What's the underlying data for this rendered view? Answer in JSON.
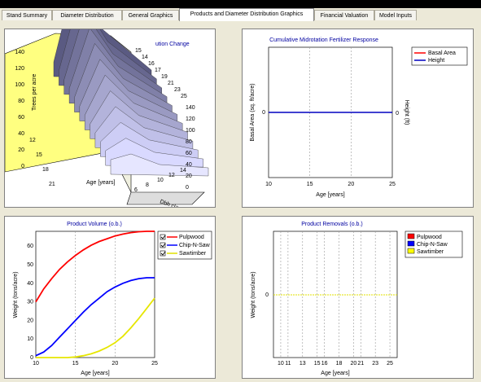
{
  "tabs": [
    {
      "label": "Stand Summary"
    },
    {
      "label": "Diameter Distribution"
    },
    {
      "label": "General Graphics"
    },
    {
      "label": "Products and Diameter Distribution Graphics"
    },
    {
      "label": "Financial Valuation"
    },
    {
      "label": "Model Inputs"
    }
  ],
  "colors": {
    "pulpwood": "#ff0000",
    "chipnsaw": "#0000ff",
    "sawtimber": "#ffff00",
    "height": "#0000c0",
    "background": "#ece9d8"
  },
  "chart_3d": {
    "title": "ution Change",
    "zlabel": "Trees per acre",
    "xlabel": "Age [years]",
    "ylabel": "Dbh class (in)",
    "z_ticks": [
      "140",
      "120",
      "100",
      "80",
      "60",
      "40",
      "20",
      "0"
    ],
    "back_ticks": [
      "15",
      "14",
      "16",
      "17",
      "19",
      "21",
      "23",
      "25"
    ],
    "right_ticks": [
      "140",
      "120",
      "100",
      "80",
      "60",
      "40",
      "20",
      "0"
    ],
    "age_ticks": [
      "12",
      "15",
      "18",
      "21"
    ],
    "dbh_ticks": [
      "14",
      "12",
      "10",
      "8",
      "6"
    ]
  },
  "chart_data": [
    {
      "type": "line",
      "title": "Cumulative Midrotation Fertilizer Response",
      "xlabel": "Age [years]",
      "ylabel": "Basal Area (sq. ft/acre)",
      "y2label": "Height (ft)",
      "x_ticks": [
        10,
        15,
        20,
        25
      ],
      "xlim": [
        10,
        25
      ],
      "series": [
        {
          "name": "Basal Area",
          "color": "#ff0000",
          "x": [
            10,
            25
          ],
          "y": [
            0,
            0
          ]
        },
        {
          "name": "Height",
          "color": "#0000c0",
          "x": [
            10,
            25
          ],
          "y": [
            0,
            0
          ]
        }
      ],
      "y_tick": "0",
      "y2_tick": "0"
    },
    {
      "type": "line",
      "title": "Product Volume (o.b.)",
      "xlabel": "Age [years]",
      "ylabel": "Weight (tons/acre)",
      "x_ticks": [
        10,
        15,
        20,
        25
      ],
      "y_ticks": [
        0,
        10,
        20,
        30,
        40,
        50,
        60
      ],
      "xlim": [
        10,
        25
      ],
      "ylim": [
        0,
        68
      ],
      "series": [
        {
          "name": "Pulpwood",
          "color": "#ff0000",
          "x": [
            10,
            11,
            12,
            13,
            14,
            15,
            16,
            17,
            18,
            19,
            20,
            21,
            22,
            23,
            24,
            25
          ],
          "y": [
            30,
            37,
            42.5,
            47.5,
            51.5,
            55,
            58,
            60.5,
            62.5,
            64,
            65.5,
            66.5,
            67.3,
            67.8,
            68,
            68
          ]
        },
        {
          "name": "Chip-N-Saw",
          "color": "#0000ff",
          "x": [
            10,
            11,
            12,
            13,
            14,
            15,
            16,
            17,
            18,
            19,
            20,
            21,
            22,
            23,
            24,
            25
          ],
          "y": [
            1,
            3,
            6.5,
            11,
            15.5,
            20,
            24.5,
            28.5,
            32,
            35.5,
            38,
            40,
            41.5,
            42.5,
            43,
            43
          ]
        },
        {
          "name": "Sawtimber",
          "color": "#ffff00",
          "x": [
            10,
            11,
            12,
            13,
            14,
            15,
            16,
            17,
            18,
            19,
            20,
            21,
            22,
            23,
            24,
            25
          ],
          "y": [
            0,
            0,
            0,
            0,
            0,
            0.3,
            1,
            2,
            3.5,
            5.5,
            8,
            11.5,
            16,
            21,
            26.5,
            32
          ]
        }
      ]
    },
    {
      "type": "bar",
      "title": "Product Removals (o.b.)",
      "xlabel": "Age [years]",
      "ylabel": "Weight (tons/acre)",
      "x_ticks": [
        "10",
        "11",
        "13",
        "15",
        "16",
        "18",
        "20",
        "21",
        "23",
        "25"
      ],
      "series": [
        {
          "name": "Pulpwood",
          "color": "#ff0000",
          "values": [
            0,
            0,
            0,
            0,
            0,
            0,
            0,
            0,
            0,
            0
          ]
        },
        {
          "name": "Chip-N-Saw",
          "color": "#0000ff",
          "values": [
            0,
            0,
            0,
            0,
            0,
            0,
            0,
            0,
            0,
            0
          ]
        },
        {
          "name": "Sawtimber",
          "color": "#ffff00",
          "values": [
            0,
            0,
            0,
            0,
            0,
            0,
            0,
            0,
            0,
            0
          ]
        }
      ],
      "y_tick": "0"
    }
  ]
}
